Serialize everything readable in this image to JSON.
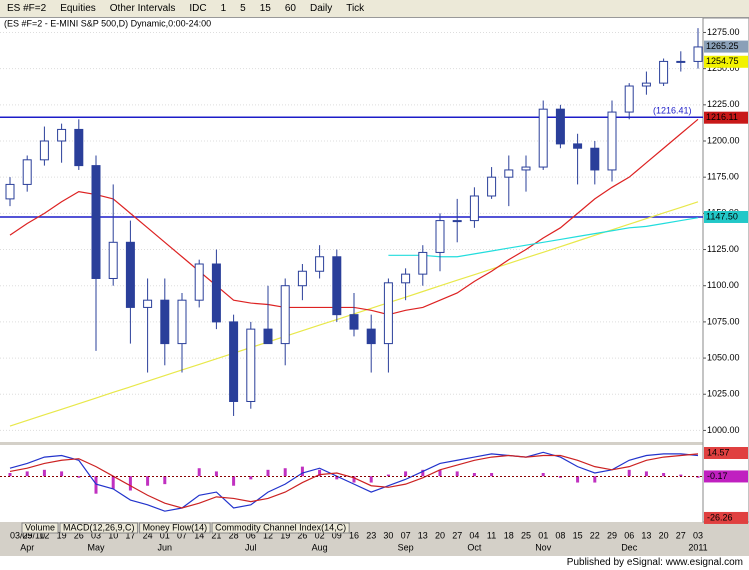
{
  "toolbar": {
    "symbol": "ES #F=2",
    "items": [
      "Equities",
      "Other Intervals",
      "IDC",
      "1",
      "5",
      "15",
      "60",
      "Daily",
      "Tick"
    ]
  },
  "chart_data": [
    {
      "type": "candlestick",
      "title": "(ES #F=2 - E-MINI S&P 500,D) Dynamic,0:00-24:00",
      "categories": [
        "03/29/10",
        "05",
        "12",
        "19",
        "26",
        "03",
        "10",
        "17",
        "24",
        "01",
        "07",
        "14",
        "21",
        "28",
        "06",
        "12",
        "19",
        "26",
        "02",
        "09",
        "16",
        "23",
        "30",
        "07",
        "13",
        "20",
        "27",
        "04",
        "11",
        "18",
        "25",
        "01",
        "08",
        "15",
        "22",
        "29",
        "06",
        "13",
        "20",
        "27",
        "03"
      ],
      "month_labels": [
        null,
        "Apr",
        null,
        null,
        null,
        "May",
        null,
        null,
        null,
        "Jun",
        null,
        null,
        null,
        null,
        "Jul",
        null,
        null,
        null,
        "Aug",
        null,
        null,
        null,
        null,
        "Sep",
        null,
        null,
        null,
        "Oct",
        null,
        null,
        null,
        "Nov",
        null,
        null,
        null,
        null,
        "Dec",
        null,
        null,
        null,
        "2011"
      ],
      "open": [
        1160,
        1170,
        1187,
        1200,
        1208,
        1183,
        1105,
        1130,
        1085,
        1090,
        1060,
        1090,
        1115,
        1075,
        1020,
        1070,
        1060,
        1100,
        1110,
        1120,
        1080,
        1070,
        1060,
        1102,
        1108,
        1123,
        1145,
        1145,
        1162,
        1175,
        1180,
        1182,
        1222,
        1198,
        1195,
        1180,
        1220,
        1238,
        1240,
        1255,
        1255
      ],
      "high": [
        1175,
        1190,
        1210,
        1212,
        1215,
        1190,
        1170,
        1145,
        1105,
        1105,
        1095,
        1118,
        1125,
        1080,
        1075,
        1100,
        1105,
        1115,
        1128,
        1125,
        1095,
        1080,
        1105,
        1112,
        1128,
        1150,
        1160,
        1168,
        1182,
        1190,
        1190,
        1228,
        1225,
        1205,
        1200,
        1228,
        1240,
        1248,
        1257,
        1262,
        1278
      ],
      "low": [
        1155,
        1165,
        1183,
        1185,
        1180,
        1055,
        1100,
        1060,
        1040,
        1045,
        1040,
        1085,
        1070,
        1010,
        1015,
        1060,
        1045,
        1090,
        1105,
        1075,
        1065,
        1040,
        1040,
        1090,
        1100,
        1110,
        1130,
        1140,
        1160,
        1155,
        1165,
        1180,
        1195,
        1170,
        1170,
        1172,
        1215,
        1232,
        1238,
        1248,
        1250
      ],
      "close": [
        1170,
        1187,
        1200,
        1208,
        1183,
        1105,
        1130,
        1085,
        1090,
        1060,
        1090,
        1115,
        1075,
        1020,
        1070,
        1060,
        1100,
        1110,
        1120,
        1080,
        1070,
        1060,
        1102,
        1108,
        1123,
        1145,
        1145,
        1162,
        1175,
        1180,
        1182,
        1222,
        1198,
        1195,
        1180,
        1220,
        1238,
        1240,
        1255,
        1255,
        1265
      ],
      "candle_color": "#2a3f9a",
      "ylim": [
        992,
        1285
      ],
      "yticks": [
        {
          "value": 1000,
          "label": "1000.00"
        },
        {
          "value": 1025,
          "label": "1025.00"
        },
        {
          "value": 1050,
          "label": "1050.00"
        },
        {
          "value": 1075,
          "label": "1075.00"
        },
        {
          "value": 1100,
          "label": "1100.00"
        },
        {
          "value": 1125,
          "label": "1125.00"
        },
        {
          "value": 1150,
          "label": "1150.00"
        },
        {
          "value": 1175,
          "label": "1175.00"
        },
        {
          "value": 1200,
          "label": "1200.00"
        },
        {
          "value": 1225,
          "label": "1225.00"
        },
        {
          "value": 1250,
          "label": "1250.00"
        },
        {
          "value": 1275,
          "label": "1275.00"
        }
      ],
      "grid": true,
      "overlays": [
        {
          "color": "#e8e84a",
          "values": [
            1003,
            1006.9,
            1010.8,
            1014.6,
            1018.5,
            1022.4,
            1026.3,
            1030.1,
            1034,
            1037.9,
            1041.8,
            1045.6,
            1049.5,
            1053.4,
            1057.3,
            1061.1,
            1065,
            1068.9,
            1072.8,
            1076.6,
            1080.5,
            1084.4,
            1088.3,
            1092.1,
            1096,
            1099.9,
            1103.8,
            1107.6,
            1111.5,
            1115.4,
            1119.3,
            1123.1,
            1127,
            1130.9,
            1134.8,
            1138.6,
            1142.5,
            1146.4,
            1150.3,
            1154.1,
            1158
          ]
        },
        {
          "color": "#d22",
          "values": [
            1135,
            1143,
            1150,
            1158,
            1165,
            1163,
            1160,
            1150,
            1140,
            1130,
            1120,
            1110,
            1100,
            1090,
            1088,
            1087,
            1085,
            1085,
            1085,
            1085,
            1085,
            1083,
            1080,
            1083,
            1085,
            1090,
            1095,
            1103,
            1110,
            1118,
            1125,
            1133,
            1140,
            1150,
            1160,
            1168,
            1175,
            1185,
            1195,
            1205,
            1215
          ]
        },
        {
          "color": "#2dd",
          "values": [
            null,
            null,
            null,
            null,
            null,
            null,
            null,
            null,
            null,
            null,
            null,
            null,
            null,
            null,
            null,
            null,
            null,
            null,
            null,
            null,
            null,
            null,
            1121,
            1121,
            1121,
            1120,
            1120,
            1122,
            1124,
            1126,
            1128,
            1130,
            1132,
            1134,
            1136,
            1138,
            1140,
            1141,
            1143,
            1145,
            1147
          ]
        }
      ],
      "hlines": [
        {
          "value": 1216.41,
          "label": "(1216.41)",
          "color": "#1c1cc8"
        },
        {
          "value": 1147.5,
          "color": "#1c1cc8"
        }
      ],
      "price_badges": [
        {
          "value": 1265.25,
          "label": "1265.25",
          "color": "#8aa0b8"
        },
        {
          "value": 1254.75,
          "label": "1254.75",
          "color": "#f2f200"
        },
        {
          "value": 1216.11,
          "label": "1216.11",
          "color": "#c81818"
        },
        {
          "value": 1147.5,
          "label": "1147.50",
          "color": "#22c8c8"
        }
      ]
    },
    {
      "type": "macd",
      "ylim": [
        -28.8,
        19.6
      ],
      "yticks": [
        14.57,
        -0.17,
        -26.26
      ],
      "badge_colors": [
        "#e04040",
        "#c020c0",
        "#e04040"
      ],
      "series": [
        {
          "color": "#2233cc",
          "values": [
            5,
            8,
            12,
            13,
            10,
            -5,
            -8,
            -15,
            -18,
            -22,
            -20,
            -12,
            -10,
            -20,
            -18,
            -10,
            -5,
            2,
            5,
            0,
            -5,
            -10,
            -6,
            -2,
            3,
            8,
            10,
            12,
            14,
            13,
            12,
            15,
            12,
            6,
            2,
            4,
            10,
            13,
            14,
            14,
            13
          ]
        },
        {
          "color": "#cc2222",
          "values": [
            3,
            5,
            8,
            10,
            11,
            6,
            0,
            -6,
            -12,
            -17,
            -20,
            -17,
            -13,
            -14,
            -16,
            -14,
            -10,
            -4,
            1,
            2,
            -1,
            -6,
            -7,
            -5,
            -1,
            4,
            7,
            10,
            12,
            13,
            12,
            13,
            13,
            10,
            6,
            4,
            6,
            10,
            12,
            13,
            14
          ]
        }
      ],
      "histogram": {
        "color": "#c030c0",
        "values": [
          2,
          3,
          4,
          3,
          -1,
          -11,
          -8,
          -9,
          -6,
          -5,
          0,
          5,
          3,
          -6,
          -2,
          4,
          5,
          6,
          4,
          -2,
          -4,
          -4,
          1,
          3,
          4,
          4,
          3,
          2,
          2,
          0,
          0,
          2,
          -1,
          -4,
          -4,
          0,
          4,
          3,
          2,
          1,
          -1
        ]
      }
    }
  ],
  "tabs": [
    "Volume",
    "MACD(12,26,9,C)",
    "Money Flow(14)",
    "Commodity Channel Index(14,C)"
  ],
  "footer": "Published by eSignal: www.esignal.com"
}
